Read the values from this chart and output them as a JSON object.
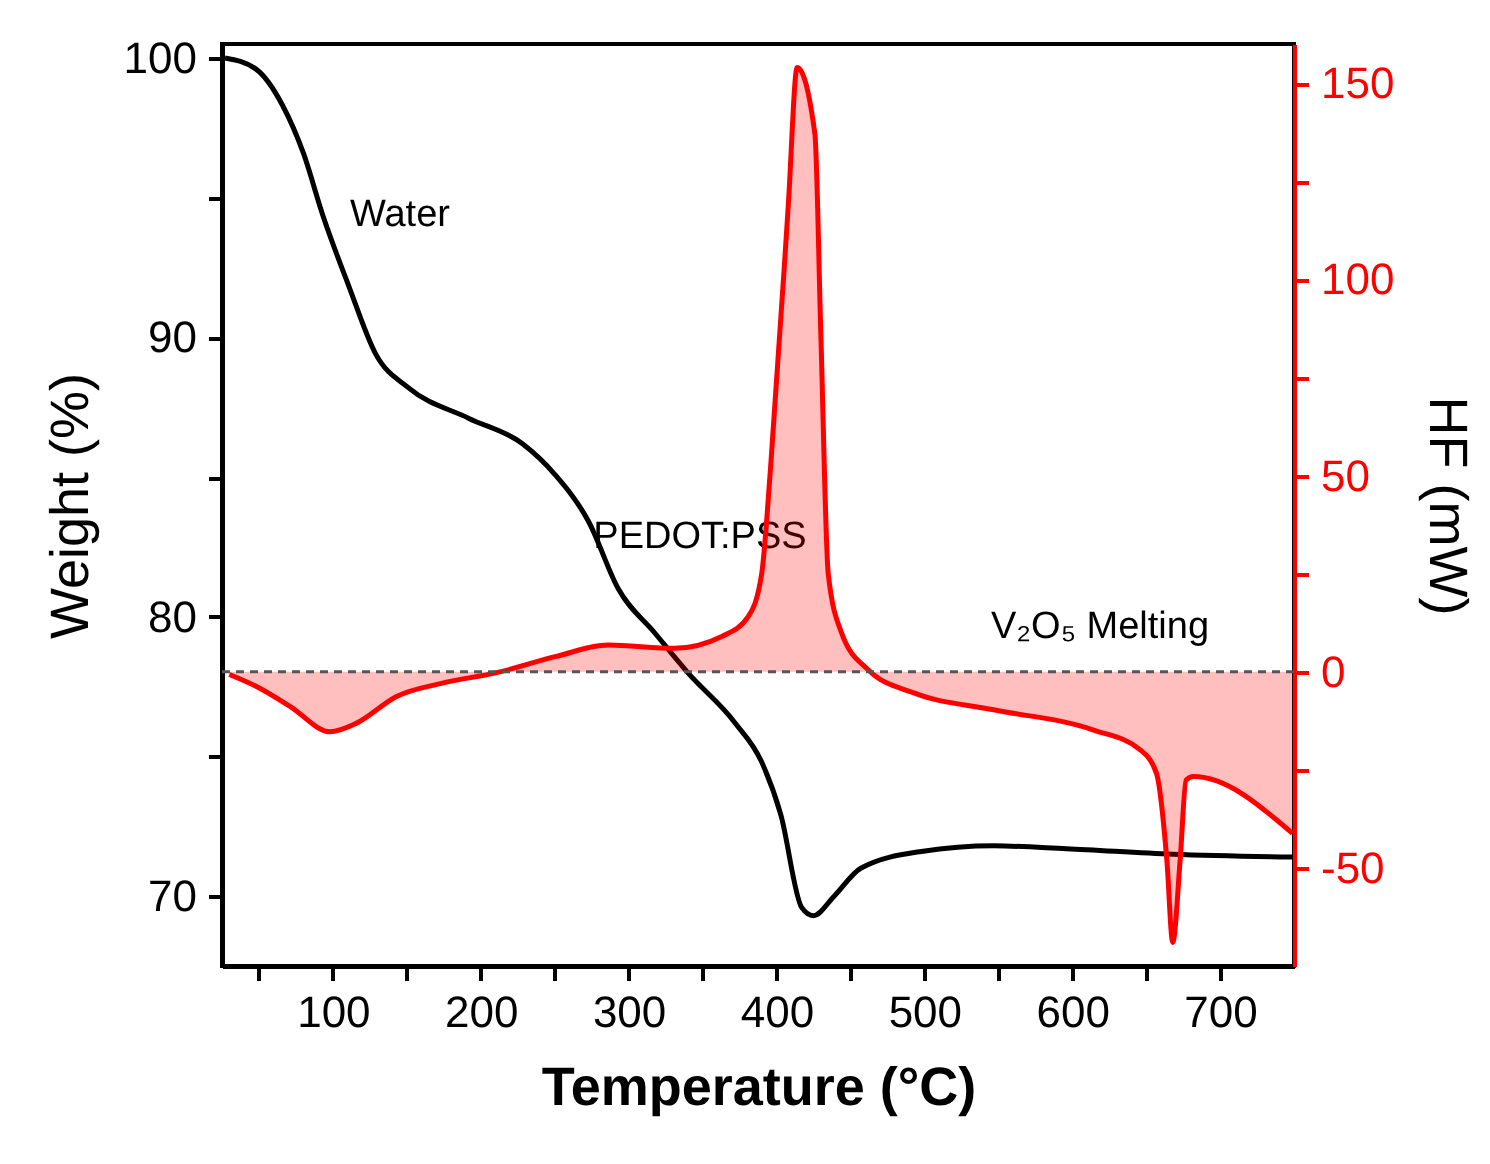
{
  "chart_data": {
    "type": "line",
    "xlabel": "Temperature (°C)",
    "ylabel": "Weight (%)",
    "y2label": "HF (mW)",
    "xlim": [
      25,
      750
    ],
    "xticks": [
      {
        "value": 50,
        "label": null
      },
      100,
      {
        "value": 150,
        "label": null
      },
      200,
      {
        "value": 250,
        "label": null
      },
      300,
      {
        "value": 350,
        "label": null
      },
      400,
      {
        "value": 450,
        "label": null
      },
      500,
      {
        "value": 550,
        "label": null
      },
      600,
      {
        "value": 650,
        "label": null
      },
      700
    ],
    "ylim": [
      67.5,
      100.5
    ],
    "yticks": [
      70,
      {
        "value": 75,
        "label": null
      },
      80,
      {
        "value": 85,
        "label": null
      },
      90,
      {
        "value": 95,
        "label": null
      },
      100
    ],
    "y2lim": [
      -75,
      160
    ],
    "y2ticks": [
      -50,
      {
        "value": -25,
        "label": null
      },
      0,
      {
        "value": 25,
        "label": null
      },
      50,
      {
        "value": 75,
        "label": null
      },
      100,
      {
        "value": 125,
        "label": null
      },
      150
    ],
    "series": [
      {
        "color": "#000000",
        "x": [
          27,
          48,
          66,
          80,
          93,
          111,
          129,
          151,
          192,
          228,
          250,
          273,
          293,
          318,
          340,
          372,
          390,
          403,
          417,
          425,
          439,
          457,
          498,
          547,
          596,
          668,
          749
        ],
        "values": [
          100,
          99.6,
          98.3,
          96.6,
          94.4,
          91.8,
          89.4,
          88.2,
          87.1,
          86.2,
          85.1,
          83.4,
          81.0,
          79.4,
          78.0,
          76.2,
          74.8,
          72.9,
          69.6,
          69.3,
          70.0,
          71.0,
          71.6,
          71.8,
          71.7,
          71.5,
          71.4
        ]
      },
      {
        "type": "area",
        "axis": "y2",
        "color": "#ff0000",
        "x": [
          30,
          48,
          71,
          98,
          116,
          143,
          174,
          210,
          251,
          286,
          331,
          363,
          381,
          390,
          396,
          408,
          414,
          426,
          430,
          435,
          444,
          462,
          493,
          547,
          614,
          646,
          657,
          664,
          668,
          673,
          677,
          682,
          749
        ],
        "values": [
          -0.7,
          -3.7,
          -8.8,
          -15.3,
          -13.1,
          -6.3,
          -2.9,
          -0.3,
          3.9,
          6.8,
          6.0,
          9.0,
          14.1,
          25,
          52,
          119,
          154,
          137,
          86,
          25,
          9.9,
          0.5,
          -5.4,
          -9.7,
          -14.8,
          -19.9,
          -25.9,
          -48,
          -69,
          -48,
          -27.6,
          -26.7,
          -41.2
        ]
      }
    ],
    "ref_lines": [
      {
        "axis": "y2",
        "value": 0,
        "color": "#555555",
        "line_style": "dashed"
      }
    ],
    "annotations": [
      "Water",
      "PEDOT:PSS",
      "V₂O₅ Melting"
    ]
  }
}
